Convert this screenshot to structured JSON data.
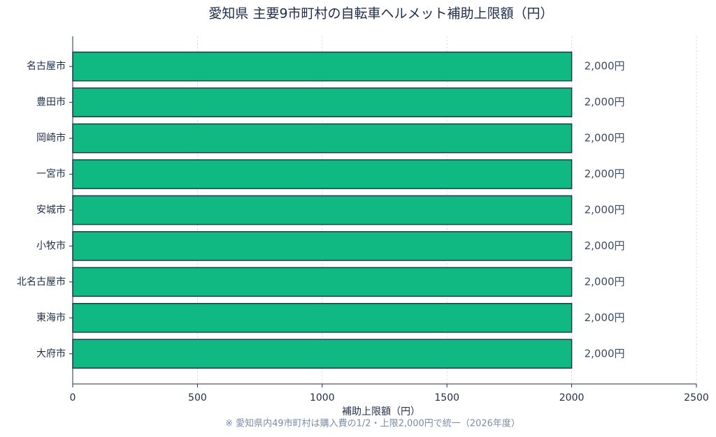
{
  "chart_data": {
    "type": "barh",
    "title": "愛知県 主要9市町村の自転車ヘルメット補助上限額（円）",
    "categories": [
      "名古屋市",
      "豊田市",
      "岡崎市",
      "一宮市",
      "安城市",
      "小牧市",
      "北名古屋市",
      "東海市",
      "大府市"
    ],
    "values": [
      2000,
      2000,
      2000,
      2000,
      2000,
      2000,
      2000,
      2000,
      2000
    ],
    "value_labels": [
      "2,000円",
      "2,000円",
      "2,000円",
      "2,000円",
      "2,000円",
      "2,000円",
      "2,000円",
      "2,000円",
      "2,000円"
    ],
    "color": "#10b981",
    "edge_color": "#1e3a4a",
    "xlabel": "補助上限額（円）",
    "note": "※ 愛知県内49市町村は購入費の1/2・上限2,000円で統一（2026年度）",
    "xlim": [
      0,
      2500
    ],
    "xticks": [
      0,
      500,
      1000,
      1500,
      2000,
      2500
    ],
    "grid": true
  }
}
